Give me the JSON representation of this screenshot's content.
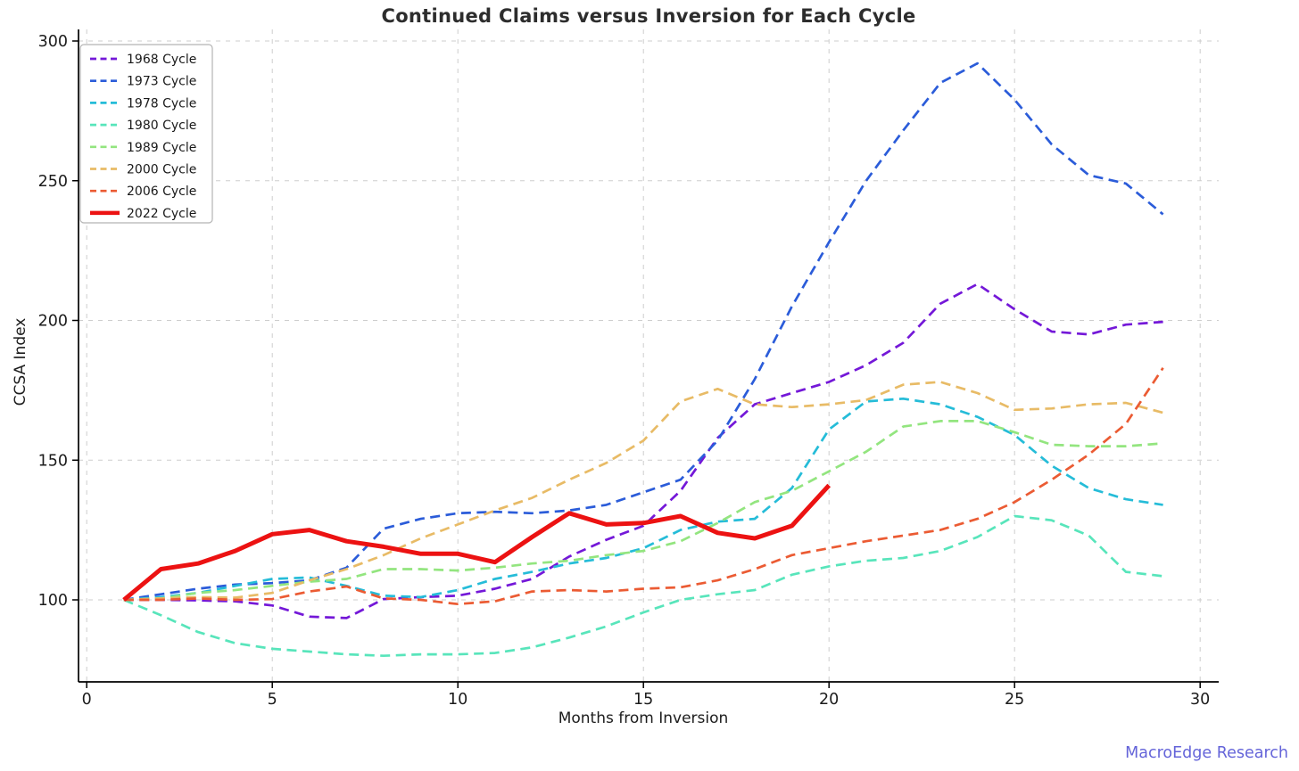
{
  "page": {
    "background": "#ffffff"
  },
  "title": {
    "text": "Continued Claims versus Inversion for Each Cycle",
    "color": "#2d2d2d"
  },
  "axis": {
    "x_label": "Months from Inversion",
    "y_label": "CCSA Index"
  },
  "watermark": {
    "text": "MacroEdge Research",
    "color": "#6464d9"
  },
  "chart_data": {
    "type": "line",
    "title": "Continued Claims versus Inversion for Each Cycle",
    "xlabel": "Months from Inversion",
    "ylabel": "CCSA Index",
    "x_ticks": [
      0,
      5,
      10,
      15,
      20,
      25,
      30
    ],
    "y_ticks": [
      100,
      150,
      200,
      250,
      300
    ],
    "xlim": [
      -0.25,
      30.5
    ],
    "ylim": [
      70.5,
      304
    ],
    "grid": true,
    "grid_color": "#cdcdcd",
    "spine_color": "#000000",
    "tick_label_color": "#1c1c1c",
    "legend_position": "upper left",
    "start_month": 1,
    "series": [
      {
        "name": "1968 Cycle",
        "color": "#7418d8",
        "style": "dashed",
        "linewidth": 2.7,
        "values": [
          100,
          100,
          99.8,
          99.5,
          98,
          94,
          93.5,
          100.3,
          101,
          101.5,
          104,
          107.5,
          115.5,
          121.5,
          126.5,
          139,
          158,
          170,
          174,
          178,
          184,
          192,
          206,
          213,
          204,
          196,
          195,
          198.5,
          199.5
        ]
      },
      {
        "name": "1973 Cycle",
        "color": "#2b5cd9",
        "style": "dashed",
        "linewidth": 2.7,
        "values": [
          100,
          102,
          104,
          105.5,
          106,
          107,
          111.5,
          125.5,
          129,
          131,
          131.5,
          131,
          132,
          134,
          138.5,
          143,
          157,
          179,
          205,
          228,
          250,
          268,
          285,
          292,
          279,
          263,
          252,
          249,
          238
        ]
      },
      {
        "name": "1978 Cycle",
        "color": "#25bcd8",
        "style": "dashed",
        "linewidth": 2.7,
        "values": [
          100,
          101,
          102.5,
          105,
          107.5,
          108,
          105,
          101.5,
          101,
          103.5,
          107.5,
          110,
          113,
          115,
          118.5,
          125,
          128,
          129,
          140,
          161,
          171,
          172,
          170,
          165.5,
          159,
          148,
          140,
          136,
          134
        ]
      },
      {
        "name": "1980 Cycle",
        "color": "#58e5bb",
        "style": "dashed",
        "linewidth": 2.7,
        "values": [
          100,
          94.5,
          88.5,
          84.5,
          82.5,
          81.5,
          80.5,
          80,
          80.5,
          80.5,
          81,
          83,
          86.5,
          90.5,
          95.5,
          100,
          102,
          103.5,
          109,
          112,
          114,
          115,
          117.5,
          122.5,
          130,
          128.5,
          123,
          110,
          108.5
        ]
      },
      {
        "name": "1989 Cycle",
        "color": "#93e57f",
        "style": "dashed",
        "linewidth": 2.7,
        "values": [
          100,
          100.5,
          102.5,
          103.5,
          105,
          106.5,
          107.5,
          111,
          111,
          110.5,
          111.5,
          113,
          114,
          116,
          117.5,
          121,
          127.5,
          135,
          139,
          146,
          153,
          162,
          164,
          164,
          160,
          155.5,
          155,
          155,
          156
        ]
      },
      {
        "name": "2000 Cycle",
        "color": "#e8bb66",
        "style": "dashed",
        "linewidth": 2.7,
        "values": [
          100,
          100.5,
          101,
          100.8,
          102.5,
          107,
          111,
          116,
          122,
          127,
          132,
          136.5,
          143,
          149,
          157,
          171,
          175.5,
          170,
          169,
          170,
          171.5,
          177,
          178,
          174,
          168,
          168.5,
          170,
          170.5,
          167
        ]
      },
      {
        "name": "2006 Cycle",
        "color": "#eb5b33",
        "style": "dashed",
        "linewidth": 2.7,
        "values": [
          100,
          100,
          100.5,
          100,
          100.3,
          103,
          104.8,
          100.5,
          100,
          98.5,
          99.5,
          103,
          103.5,
          103,
          104,
          104.5,
          107,
          111,
          116,
          118.5,
          121,
          123,
          125,
          129,
          135,
          143,
          152,
          163,
          183
        ]
      },
      {
        "name": "2022 Cycle",
        "color": "#ec1212",
        "style": "solid",
        "linewidth": 5,
        "values": [
          100,
          111,
          113,
          117.5,
          123.5,
          125,
          121,
          119,
          116.5,
          116.5,
          113.5,
          122.5,
          131,
          127,
          127.5,
          130,
          124,
          122,
          126.5,
          141
        ]
      }
    ]
  }
}
